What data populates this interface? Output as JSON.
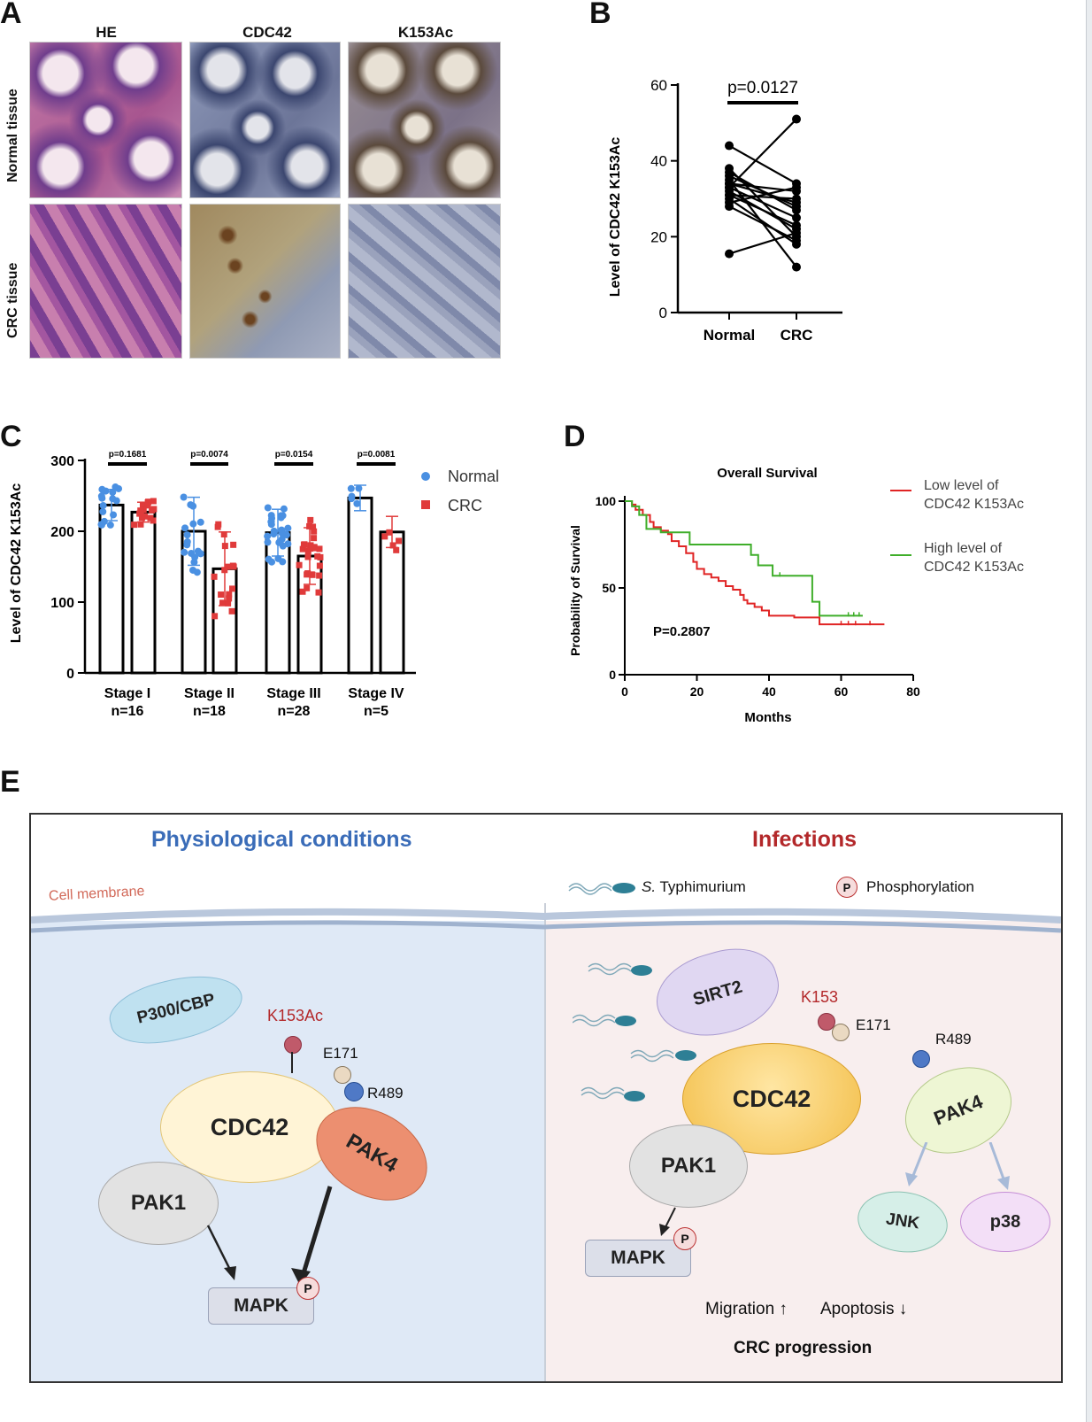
{
  "panels": {
    "A": {
      "label": "A",
      "columns": [
        "HE",
        "CDC42",
        "K153Ac"
      ],
      "rows": [
        "Normal tissue",
        "CRC tissue"
      ]
    },
    "B": {
      "label": "B",
      "pvalue": "p=0.0127",
      "ylabel": "Level of CDC42 K153Ac",
      "yticks": [
        "0",
        "20",
        "40",
        "60"
      ],
      "xticks": [
        "Normal",
        "CRC"
      ]
    },
    "C": {
      "label": "C",
      "ylabel": "Level of CDC42 K153Ac",
      "yticks": [
        "0",
        "100",
        "200",
        "300"
      ],
      "legend": [
        "Normal",
        "CRC"
      ],
      "stages": [
        {
          "name": "Stage I",
          "n": "n=16",
          "p": "p=0.1681"
        },
        {
          "name": "Stage II",
          "n": "n=18",
          "p": "p=0.0074"
        },
        {
          "name": "Stage III",
          "n": "n=28",
          "p": "p=0.0154"
        },
        {
          "name": "Stage IV",
          "n": "n=5",
          "p": "p=0.0081"
        }
      ]
    },
    "D": {
      "label": "D",
      "title": "Overall Survival",
      "ylabel": "Probability of Survival",
      "xlabel": "Months",
      "pvalue": "P=0.2807",
      "yticks": [
        "0",
        "50",
        "100"
      ],
      "xticks": [
        "0",
        "20",
        "40",
        "60",
        "80"
      ],
      "legend_low": [
        "Low level of",
        "CDC42 K153Ac"
      ],
      "legend_high": [
        "High level of",
        "CDC42 K153Ac"
      ]
    },
    "E": {
      "label": "E",
      "left_title": "Physiological conditions",
      "right_title": "Infections",
      "membrane": "Cell membrane",
      "typhi_prefix": "S.",
      "typhi_rest": " Typhimurium",
      "phospho": "Phosphorylation",
      "p_symbol": "P",
      "left": {
        "p300": "P300/CBP",
        "k153ac": "K153Ac",
        "e171": "E171",
        "r489": "R489",
        "cdc42": "CDC42",
        "pak4": "PAK4",
        "pak1": "PAK1",
        "mapk": "MAPK"
      },
      "right": {
        "sirt2": "SIRT2",
        "k153": "K153",
        "e171": "E171",
        "r489": "R489",
        "cdc42": "CDC42",
        "pak4": "PAK4",
        "pak1": "PAK1",
        "mapk": "MAPK",
        "jnk": "JNK",
        "p38": "p38",
        "migration": "Migration",
        "apoptosis": "Apoptosis",
        "progression": "CRC progression"
      }
    }
  },
  "colors": {
    "normal": "#4a90e2",
    "crc": "#e03b3b",
    "low_curve": "#e02424",
    "high_curve": "#3fae2a",
    "left_bg": "#dfe9f6",
    "right_bg": "#f8eeee",
    "left_title": "#3a6cb8",
    "right_title": "#b3282a"
  },
  "chart_data": [
    {
      "type": "scatter",
      "panel": "B",
      "ylabel": "Level of CDC42 K153Ac",
      "categories": [
        "Normal",
        "CRC"
      ],
      "ylim": [
        0,
        60
      ],
      "pairs": [
        [
          44,
          34
        ],
        [
          38,
          20
        ],
        [
          36,
          28
        ],
        [
          34,
          32
        ],
        [
          33,
          25
        ],
        [
          32,
          22
        ],
        [
          31,
          30
        ],
        [
          30,
          18
        ],
        [
          29,
          33
        ],
        [
          28,
          19
        ],
        [
          35,
          12
        ],
        [
          37,
          27
        ],
        [
          15.5,
          21
        ],
        [
          33,
          51
        ],
        [
          31,
          23
        ],
        [
          34,
          29
        ]
      ]
    },
    {
      "type": "bar",
      "panel": "C",
      "ylabel": "Level of CDC42 K153Ac",
      "categories": [
        "Stage I",
        "Stage II",
        "Stage III",
        "Stage IV"
      ],
      "ylim": [
        0,
        300
      ],
      "series": [
        {
          "name": "Normal",
          "values": [
            237,
            200,
            198,
            247
          ],
          "err": [
            22,
            48,
            33,
            18
          ]
        },
        {
          "name": "CRC",
          "values": [
            227,
            147,
            165,
            199
          ],
          "err": [
            14,
            52,
            40,
            22
          ]
        }
      ]
    },
    {
      "type": "line",
      "panel": "D",
      "title": "Overall Survival",
      "xlabel": "Months",
      "ylabel": "Probability of Survival",
      "xlim": [
        0,
        80
      ],
      "ylim": [
        0,
        100
      ],
      "series": [
        {
          "name": "Low level of CDC42 K153Ac",
          "points": [
            [
              0,
              100
            ],
            [
              2,
              98
            ],
            [
              3,
              95
            ],
            [
              5,
              92
            ],
            [
              7,
              88
            ],
            [
              8,
              85
            ],
            [
              10,
              83
            ],
            [
              12,
              81
            ],
            [
              13,
              77
            ],
            [
              15,
              74
            ],
            [
              17,
              70
            ],
            [
              19,
              65
            ],
            [
              20,
              61
            ],
            [
              22,
              58
            ],
            [
              24,
              56
            ],
            [
              26,
              54
            ],
            [
              28,
              51
            ],
            [
              30,
              49
            ],
            [
              32,
              46
            ],
            [
              33,
              43
            ],
            [
              34,
              41
            ],
            [
              36,
              39
            ],
            [
              38,
              37
            ],
            [
              40,
              34
            ],
            [
              46,
              34
            ],
            [
              47,
              33
            ],
            [
              52,
              33
            ],
            [
              54,
              29
            ],
            [
              72,
              29
            ]
          ]
        },
        {
          "name": "High level of CDC42 K153Ac",
          "points": [
            [
              0,
              100
            ],
            [
              2,
              97
            ],
            [
              4,
              92
            ],
            [
              6,
              84
            ],
            [
              10,
              82
            ],
            [
              18,
              75
            ],
            [
              34,
              75
            ],
            [
              35,
              69
            ],
            [
              37,
              63
            ],
            [
              41,
              57
            ],
            [
              51,
              57
            ],
            [
              52,
              42
            ],
            [
              54,
              34
            ],
            [
              66,
              34
            ]
          ]
        }
      ]
    }
  ]
}
